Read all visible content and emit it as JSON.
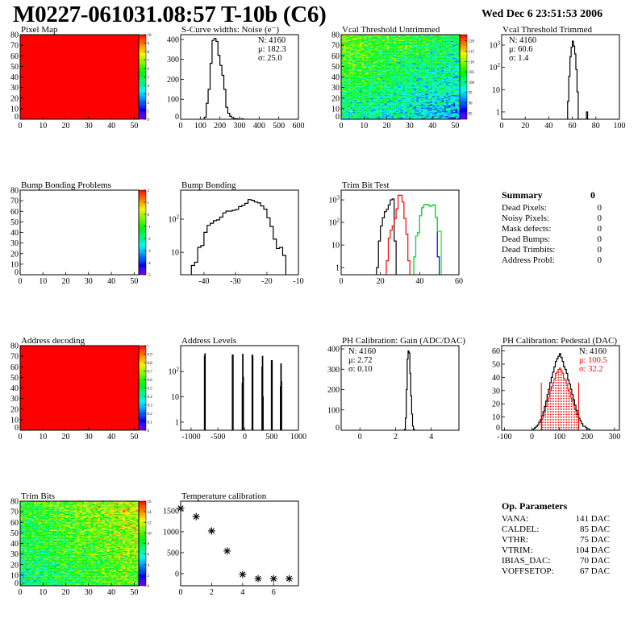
{
  "header": {
    "title": "M0227-061031.08:57 T-10b (C6)",
    "date": "Wed Dec  6 23:51:53 2006"
  },
  "summary": {
    "title": "Summary",
    "total": "0",
    "rows": [
      {
        "label": "Dead Pixels:",
        "value": "0"
      },
      {
        "label": "Noisy Pixels:",
        "value": "0"
      },
      {
        "label": "Mask defects:",
        "value": "0"
      },
      {
        "label": "Dead Bumps:",
        "value": "0"
      },
      {
        "label": "Dead Trimbits:",
        "value": "0"
      },
      {
        "label": "Address Probl:",
        "value": "0"
      }
    ]
  },
  "op_parameters": {
    "title": "Op. Parameters",
    "rows": [
      {
        "label": "VANA:",
        "value": "141 DAC"
      },
      {
        "label": "CALDEL:",
        "value": "85 DAC"
      },
      {
        "label": "VTHR:",
        "value": "75 DAC"
      },
      {
        "label": "VTRIM:",
        "value": "104 DAC"
      },
      {
        "label": "IBIAS_DAC:",
        "value": "70 DAC"
      },
      {
        "label": "VOFFSETOP:",
        "value": "67 DAC"
      }
    ]
  },
  "chart_data": [
    {
      "title": "Pixel Map",
      "type": "heatmap",
      "xlim": [
        0,
        52
      ],
      "ylim": [
        0,
        80
      ],
      "xticks": [
        "0",
        "10",
        "20",
        "30",
        "40",
        "50"
      ],
      "yticks": [
        "0",
        "10",
        "20",
        "30",
        "40",
        "50",
        "60",
        "70",
        "80"
      ],
      "zlim": [
        0,
        10
      ],
      "zticks": [
        "0",
        "1",
        "2",
        "3",
        "4",
        "5",
        "6",
        "7",
        "8",
        "9",
        "10"
      ],
      "fill": "uniform",
      "value": 10
    },
    {
      "title": "S-Curve widths: Noise (e⁻)",
      "type": "bar",
      "xlim": [
        0,
        600
      ],
      "ylim": [
        0,
        424
      ],
      "ylog": false,
      "xticks": [
        "0",
        "100",
        "200",
        "300",
        "400",
        "500",
        "600"
      ],
      "yticks": [
        "0",
        "100",
        "200",
        "300",
        "400"
      ],
      "series": [
        {
          "color": "#000000",
          "start": 120,
          "width": 10,
          "values": [
            10,
            80,
            150,
            280,
            395,
            405,
            390,
            320,
            270,
            220,
            150,
            60,
            30,
            15,
            8,
            3,
            2,
            1,
            0,
            2
          ]
        }
      ],
      "stats": {
        "position": "right",
        "lines": [
          {
            "text": "N: 4160",
            "color": "#000000"
          },
          {
            "text": "μ: 182.3",
            "color": "#000000"
          },
          {
            "text": "σ: 25.0",
            "color": "#000000"
          }
        ]
      }
    },
    {
      "title": "Vcal Threshold Untrimmed",
      "type": "heatmap",
      "xlim": [
        0,
        52
      ],
      "ylim": [
        0,
        80
      ],
      "xticks": [
        "0",
        "10",
        "20",
        "30",
        "40",
        "50"
      ],
      "yticks": [
        "0",
        "10",
        "20",
        "30",
        "40",
        "50",
        "60",
        "70",
        "80"
      ],
      "zlim": [
        82,
        123
      ],
      "zticks": [
        "85",
        "90",
        "95",
        "100",
        "105",
        "110",
        "115",
        "120"
      ],
      "fill": "noise",
      "value": 100
    },
    {
      "title": "Vcal Threshold Trimmed",
      "type": "bar",
      "xlim": [
        0,
        100
      ],
      "ylim": [
        0.47,
        2950
      ],
      "ylog": true,
      "xticks": [
        "0",
        "20",
        "40",
        "60",
        "80",
        "100"
      ],
      "yticks": [
        "1",
        "10",
        "10^2",
        "10^3"
      ],
      "series": [
        {
          "color": "#000000",
          "start": 56,
          "width": 1,
          "values": [
            3,
            40,
            300,
            800,
            1500,
            900,
            400,
            80,
            8,
            0,
            0,
            0,
            0,
            0,
            0,
            0,
            1
          ]
        }
      ],
      "stats": {
        "position": "left",
        "lines": [
          {
            "text": "N: 4160",
            "color": "#000000"
          },
          {
            "text": "μ: 60.6",
            "color": "#000000"
          },
          {
            "text": "σ:  1.4",
            "color": "#000000"
          }
        ]
      }
    },
    {
      "title": "Bump Bonding Problems",
      "type": "heatmap",
      "xlim": [
        0,
        52
      ],
      "ylim": [
        0,
        80
      ],
      "xticks": [
        "0",
        "10",
        "20",
        "30",
        "40",
        "50"
      ],
      "yticks": [
        "0",
        "10",
        "20",
        "30",
        "40",
        "50",
        "60",
        "70",
        "80"
      ],
      "zlim": [
        -5,
        2
      ],
      "zticks": [
        "-5",
        "-4",
        "-3",
        "-2",
        "-1",
        "0",
        "1",
        "2"
      ],
      "fill": "empty",
      "value": null
    },
    {
      "title": "Bump Bonding",
      "type": "bar",
      "xlim": [
        -47.4,
        -10
      ],
      "ylim": [
        2.1,
        750
      ],
      "ylog": true,
      "xticks": [
        "-40",
        "-30",
        "-20",
        "-10"
      ],
      "yticks": [
        "10",
        "10^2"
      ],
      "series": [
        {
          "color": "#000000",
          "start": -44,
          "width": 1,
          "values": [
            4,
            5,
            14,
            16,
            40,
            65,
            75,
            90,
            95,
            115,
            155,
            175,
            175,
            185,
            195,
            240,
            260,
            300,
            390,
            370,
            330,
            310,
            250,
            200,
            110,
            60,
            25,
            13,
            14,
            8
          ]
        }
      ]
    },
    {
      "title": "Trim Bit Test",
      "type": "bar",
      "xlim": [
        0,
        60
      ],
      "ylim": [
        0.48,
        2700
      ],
      "ylog": true,
      "xticks": [
        "0",
        "20",
        "40",
        "60"
      ],
      "yticks": [
        "1",
        "10",
        "10^2",
        "10^3"
      ],
      "series": [
        {
          "color": "#000000",
          "start": 18,
          "width": 1,
          "values": [
            1,
            15,
            70,
            160,
            300,
            380,
            600,
            1000,
            1100,
            15
          ]
        },
        {
          "color": "#ff0000",
          "start": 23,
          "width": 1,
          "values": [
            2,
            20,
            45,
            70,
            150,
            400,
            1600,
            1600,
            800,
            150,
            30,
            2
          ]
        },
        {
          "color": "#0000ff",
          "start": 37,
          "width": 1,
          "values": [
            3,
            25,
            35,
            200,
            450,
            600,
            620,
            600,
            520,
            550,
            600,
            170,
            3
          ]
        },
        {
          "color": "#00ff00",
          "start": 37,
          "width": 1,
          "values": [
            3,
            25,
            35,
            200,
            450,
            600,
            620,
            600,
            520,
            550,
            600,
            170,
            40,
            40
          ]
        }
      ]
    },
    {
      "title": "Address decoding",
      "type": "heatmap",
      "xlim": [
        0,
        52
      ],
      "ylim": [
        0,
        80
      ],
      "xticks": [
        "0",
        "10",
        "20",
        "30",
        "40",
        "50"
      ],
      "yticks": [
        "0",
        "10",
        "20",
        "30",
        "40",
        "50",
        "60",
        "70",
        "80"
      ],
      "zlim": [
        0,
        1
      ],
      "zticks": [
        "0",
        "0.1",
        "0.2",
        "0.3",
        "0.4",
        "0.5",
        "0.6",
        "0.7",
        "0.8",
        "0.9",
        "1"
      ],
      "fill": "uniform",
      "value": 1
    },
    {
      "title": "Address Levels",
      "type": "bar",
      "xlim": [
        -1194,
        1000
      ],
      "ylim": [
        0.48,
        1050
      ],
      "ylog": true,
      "xticks": [
        "-1000",
        "-500",
        "0",
        "500",
        "1000"
      ],
      "yticks": [
        "1",
        "10",
        "10^2"
      ],
      "series": [
        {
          "color": "#000000",
          "width": 8,
          "bins": [
            [
              -752,
              400
            ],
            [
              -744,
              500
            ],
            [
              -232,
              450
            ],
            [
              -224,
              450
            ],
            [
              -48,
              35
            ],
            [
              -40,
              480
            ],
            [
              -32,
              60
            ],
            [
              136,
              450
            ],
            [
              144,
              400
            ],
            [
              320,
              150
            ],
            [
              328,
              400
            ],
            [
              336,
              10
            ],
            [
              496,
              270
            ],
            [
              504,
              270
            ],
            [
              664,
              25
            ],
            [
              672,
              200
            ],
            [
              680,
              40
            ]
          ]
        }
      ]
    },
    {
      "title": "PH Calibration: Gain (ADC/DAC)",
      "type": "bar",
      "xlim": [
        -1.05,
        5.55
      ],
      "ylim": [
        0,
        416
      ],
      "ylog": false,
      "xticks": [
        "0",
        "2",
        "4"
      ],
      "yticks": [
        "0",
        "100",
        "200",
        "300",
        "400"
      ],
      "series": [
        {
          "color": "#000000",
          "start": 2.5,
          "width": 0.05,
          "values": [
            5,
            60,
            200,
            350,
            390,
            380,
            280,
            170,
            80,
            20,
            5
          ]
        }
      ],
      "stats": {
        "position": "left",
        "lines": [
          {
            "text": "N: 4160",
            "color": "#000000"
          },
          {
            "text": "μ: 2.72",
            "color": "#000000"
          },
          {
            "text": "σ: 0.10",
            "color": "#000000"
          }
        ]
      }
    },
    {
      "title": "PH Calibration: Pedestal (DAC)",
      "type": "bar",
      "xlim": [
        -110,
        318
      ],
      "ylim": [
        0,
        64
      ],
      "ylog": false,
      "xticks": [
        "-100",
        "0",
        "100",
        "200",
        "300"
      ],
      "yticks": [
        "0",
        "10",
        "20",
        "30",
        "40",
        "50",
        "60"
      ],
      "series": [
        {
          "color": "#ff0000",
          "filled": true,
          "start": 35,
          "width": 5,
          "values": [
            9,
            11,
            15,
            18,
            22,
            25,
            30,
            33,
            36,
            39,
            43,
            44,
            46,
            47,
            45,
            43,
            39,
            38,
            35,
            31,
            29,
            25,
            22,
            19,
            16,
            12,
            10
          ]
        },
        {
          "color": "#000000",
          "start": 5,
          "width": 5,
          "values": [
            1,
            2,
            3,
            4,
            6,
            8,
            11,
            14,
            18,
            22,
            27,
            31,
            36,
            40,
            44,
            48,
            52,
            54,
            56,
            58,
            55,
            52,
            48,
            46,
            43,
            38,
            35,
            31,
            27,
            23,
            19,
            15,
            12,
            9,
            7,
            5,
            3,
            3,
            2,
            1,
            1
          ]
        }
      ],
      "markers": {
        "color": "#ff0000",
        "x": [
          34,
          170
        ],
        "height": 36
      },
      "stats": {
        "position": "right",
        "lines": [
          {
            "text": "N: 4160",
            "color": "#000000"
          },
          {
            "text": "μ: 100.5",
            "color": "#ff0000"
          },
          {
            "text": "σ: 32.2",
            "color": "#ff0000"
          }
        ]
      }
    },
    {
      "title": "Trim Bits",
      "type": "heatmap",
      "xlim": [
        0,
        52
      ],
      "ylim": [
        0,
        80
      ],
      "xticks": [
        "0",
        "10",
        "20",
        "30",
        "40",
        "50"
      ],
      "yticks": [
        "0",
        "10",
        "20",
        "30",
        "40",
        "50",
        "60",
        "70",
        "80"
      ],
      "zlim": [
        0,
        16
      ],
      "zticks": [
        "0",
        "2",
        "4",
        "6",
        "8",
        "10",
        "12",
        "14",
        "16"
      ],
      "fill": "noise",
      "value": 10
    },
    {
      "title": "Temperature calibration",
      "type": "scatter",
      "xlim": [
        0,
        7.6
      ],
      "ylim": [
        -290,
        1730
      ],
      "xticks": [
        "0",
        "2",
        "4",
        "6"
      ],
      "yticks": [
        "0",
        "500",
        "1000",
        "1500"
      ],
      "marker": "asterisk",
      "x": [
        0,
        1,
        2,
        3,
        4,
        5,
        6,
        7
      ],
      "y": [
        1560,
        1360,
        1020,
        540,
        -20,
        -120,
        -120,
        -120
      ]
    }
  ]
}
